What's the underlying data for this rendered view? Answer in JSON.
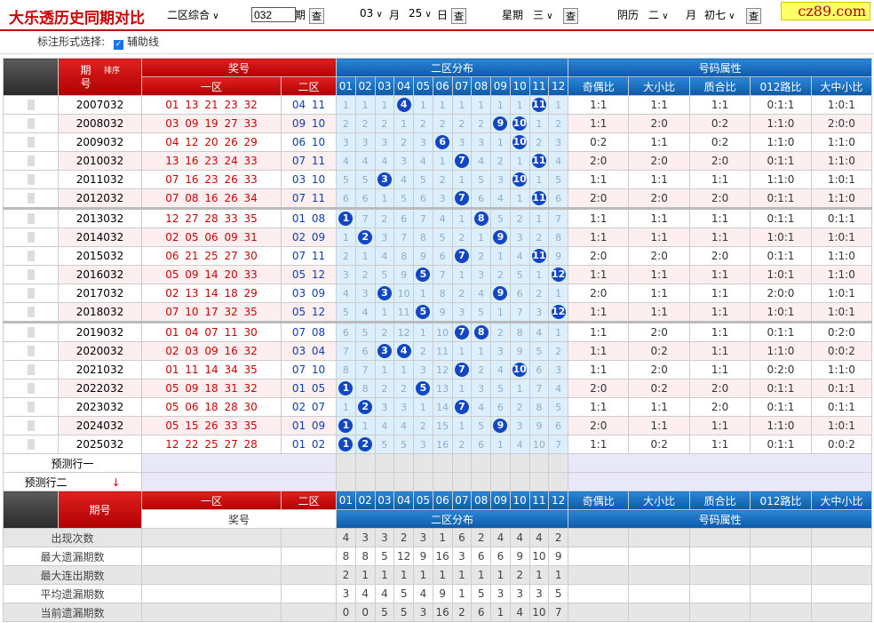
{
  "header": {
    "title": "大乐透历史同期对比",
    "zone_select": "二区综合",
    "period_input": "032",
    "period_label": "期",
    "query_button": "查",
    "month_select": "03",
    "month_label": "月",
    "day_select": "25",
    "day_label": "日",
    "weekday_label": "星期",
    "weekday_select": "三",
    "lunar_label": "阴历",
    "lunar_month_select": "二",
    "lunar_month_label": "月",
    "lunar_day_select": "初七",
    "logo": "cz89.com"
  },
  "options": {
    "label": "标注形式选择:",
    "checkbox_label": "辅助线"
  },
  "table": {
    "period_header": "期号",
    "sort_label": "排序",
    "prize_header": "奖号",
    "front_header": "一区",
    "back_header": "二区",
    "distribution_header": "二区分布",
    "zone2_columns": [
      "01",
      "02",
      "03",
      "04",
      "05",
      "06",
      "07",
      "08",
      "09",
      "10",
      "11",
      "12"
    ],
    "attributes_header": "号码属性",
    "attribute_columns": [
      "奇偶比",
      "大小比",
      "质合比",
      "012路比",
      "大中小比"
    ],
    "rows": [
      {
        "period": "2007032",
        "front": "01 13 21 23 32",
        "back": "04 11",
        "distribution": [
          1,
          1,
          1,
          4,
          1,
          1,
          1,
          1,
          1,
          1,
          11,
          1
        ],
        "attributes": [
          "1:1",
          "1:1",
          "1:1",
          "0:1:1",
          "1:0:1"
        ]
      },
      {
        "period": "2008032",
        "front": "03 09 19 27 33",
        "back": "09 10",
        "distribution": [
          2,
          2,
          2,
          1,
          2,
          2,
          2,
          2,
          9,
          10,
          1,
          2
        ],
        "attributes": [
          "1:1",
          "2:0",
          "0:2",
          "1:1:0",
          "2:0:0"
        ]
      },
      {
        "period": "2009032",
        "front": "04 12 20 26 29",
        "back": "06 10",
        "distribution": [
          3,
          3,
          3,
          2,
          3,
          6,
          3,
          3,
          1,
          10,
          2,
          3
        ],
        "attributes": [
          "0:2",
          "1:1",
          "0:2",
          "1:1:0",
          "1:1:0"
        ]
      },
      {
        "period": "2010032",
        "front": "13 16 23 24 33",
        "back": "07 11",
        "distribution": [
          4,
          4,
          4,
          3,
          4,
          1,
          7,
          4,
          2,
          1,
          11,
          4
        ],
        "attributes": [
          "2:0",
          "2:0",
          "2:0",
          "0:1:1",
          "1:1:0"
        ]
      },
      {
        "period": "2011032",
        "front": "07 16 23 26 33",
        "back": "03 10",
        "distribution": [
          5,
          5,
          3,
          4,
          5,
          2,
          1,
          5,
          3,
          10,
          1,
          5
        ],
        "attributes": [
          "1:1",
          "1:1",
          "1:1",
          "1:1:0",
          "1:0:1"
        ]
      },
      {
        "period": "2012032",
        "front": "07 08 16 26 34",
        "back": "07 11",
        "distribution": [
          6,
          6,
          1,
          5,
          6,
          3,
          7,
          6,
          4,
          1,
          11,
          6
        ],
        "attributes": [
          "2:0",
          "2:0",
          "2:0",
          "0:1:1",
          "1:1:0"
        ]
      },
      {
        "period": "2013032",
        "front": "12 27 28 33 35",
        "back": "01 08",
        "distribution": [
          1,
          7,
          2,
          6,
          7,
          4,
          1,
          8,
          5,
          2,
          1,
          7
        ],
        "attributes": [
          "1:1",
          "1:1",
          "1:1",
          "0:1:1",
          "0:1:1"
        ]
      },
      {
        "period": "2014032",
        "front": "02 05 06 09 31",
        "back": "02 09",
        "distribution": [
          1,
          2,
          3,
          7,
          8,
          5,
          2,
          1,
          9,
          3,
          2,
          8
        ],
        "attributes": [
          "1:1",
          "1:1",
          "1:1",
          "1:0:1",
          "1:0:1"
        ]
      },
      {
        "period": "2015032",
        "front": "06 21 25 27 30",
        "back": "07 11",
        "distribution": [
          2,
          1,
          4,
          8,
          9,
          6,
          7,
          2,
          1,
          4,
          11,
          9
        ],
        "attributes": [
          "2:0",
          "2:0",
          "2:0",
          "0:1:1",
          "1:1:0"
        ]
      },
      {
        "period": "2016032",
        "front": "05 09 14 20 33",
        "back": "05 12",
        "distribution": [
          3,
          2,
          5,
          9,
          5,
          7,
          1,
          3,
          2,
          5,
          1,
          12
        ],
        "attributes": [
          "1:1",
          "1:1",
          "1:1",
          "1:0:1",
          "1:1:0"
        ]
      },
      {
        "period": "2017032",
        "front": "02 13 14 18 29",
        "back": "03 09",
        "distribution": [
          4,
          3,
          3,
          10,
          1,
          8,
          2,
          4,
          9,
          6,
          2,
          1
        ],
        "attributes": [
          "2:0",
          "1:1",
          "1:1",
          "2:0:0",
          "1:0:1"
        ]
      },
      {
        "period": "2018032",
        "front": "07 10 17 32 35",
        "back": "05 12",
        "distribution": [
          5,
          4,
          1,
          11,
          5,
          9,
          3,
          5,
          1,
          7,
          3,
          12
        ],
        "attributes": [
          "1:1",
          "1:1",
          "1:1",
          "1:0:1",
          "1:0:1"
        ]
      },
      {
        "period": "2019032",
        "front": "01 04 07 11 30",
        "back": "07 08",
        "distribution": [
          6,
          5,
          2,
          12,
          1,
          10,
          7,
          8,
          2,
          8,
          4,
          1
        ],
        "attributes": [
          "1:1",
          "2:0",
          "1:1",
          "0:1:1",
          "0:2:0"
        ]
      },
      {
        "period": "2020032",
        "front": "02 03 09 16 32",
        "back": "03 04",
        "distribution": [
          7,
          6,
          3,
          4,
          2,
          11,
          1,
          1,
          3,
          9,
          5,
          2
        ],
        "attributes": [
          "1:1",
          "0:2",
          "1:1",
          "1:1:0",
          "0:0:2"
        ]
      },
      {
        "period": "2021032",
        "front": "01 11 14 34 35",
        "back": "07 10",
        "distribution": [
          8,
          7,
          1,
          1,
          3,
          12,
          7,
          2,
          4,
          10,
          6,
          3
        ],
        "attributes": [
          "1:1",
          "2:0",
          "1:1",
          "0:2:0",
          "1:1:0"
        ]
      },
      {
        "period": "2022032",
        "front": "05 09 18 31 32",
        "back": "01 05",
        "distribution": [
          1,
          8,
          2,
          2,
          5,
          13,
          1,
          3,
          5,
          1,
          7,
          4
        ],
        "attributes": [
          "2:0",
          "0:2",
          "2:0",
          "0:1:1",
          "0:1:1"
        ]
      },
      {
        "period": "2023032",
        "front": "05 06 18 28 30",
        "back": "02 07",
        "distribution": [
          1,
          2,
          3,
          3,
          1,
          14,
          7,
          4,
          6,
          2,
          8,
          5
        ],
        "attributes": [
          "1:1",
          "1:1",
          "2:0",
          "0:1:1",
          "0:1:1"
        ]
      },
      {
        "period": "2024032",
        "front": "05 15 26 33 35",
        "back": "01 09",
        "distribution": [
          1,
          1,
          4,
          4,
          2,
          15,
          1,
          5,
          9,
          3,
          9,
          6
        ],
        "attributes": [
          "2:0",
          "1:1",
          "1:1",
          "1:1:0",
          "1:0:1"
        ]
      },
      {
        "period": "2025032",
        "front": "12 22 25 27 28",
        "back": "01 02",
        "distribution": [
          1,
          2,
          5,
          5,
          3,
          16,
          2,
          6,
          1,
          4,
          10,
          7
        ],
        "attributes": [
          "1:1",
          "0:2",
          "1:1",
          "0:1:1",
          "0:0:2"
        ]
      }
    ],
    "prediction_rows": [
      "预测行一",
      "预测行二"
    ],
    "stats": [
      {
        "label": "出现次数",
        "values": [
          4,
          3,
          3,
          2,
          3,
          1,
          6,
          2,
          4,
          4,
          4,
          2
        ]
      },
      {
        "label": "最大遗漏期数",
        "values": [
          8,
          8,
          5,
          12,
          9,
          16,
          3,
          6,
          6,
          9,
          10,
          9
        ]
      },
      {
        "label": "最大连出期数",
        "values": [
          2,
          1,
          1,
          1,
          1,
          1,
          1,
          1,
          1,
          2,
          1,
          1
        ]
      },
      {
        "label": "平均遗漏期数",
        "values": [
          3,
          4,
          4,
          5,
          4,
          9,
          1,
          5,
          3,
          3,
          3,
          5
        ]
      },
      {
        "label": "当前遗漏期数",
        "values": [
          0,
          0,
          5,
          5,
          3,
          16,
          2,
          6,
          1,
          4,
          10,
          7
        ]
      }
    ]
  }
}
